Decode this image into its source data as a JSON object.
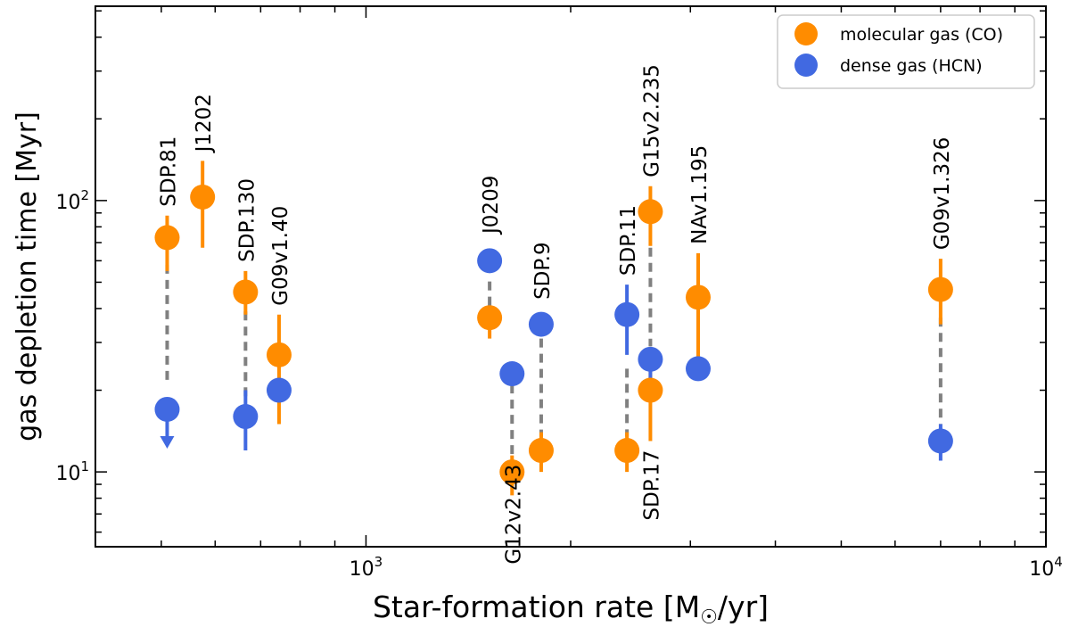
{
  "chart_data": {
    "type": "scatter",
    "xscale": "log",
    "yscale": "log",
    "xlim": [
      400,
      10000
    ],
    "ylim": [
      5.3,
      520
    ],
    "xlabel": "Star-formation rate [M",
    "xlabel_sub": "☉",
    "xlabel_end": "/yr]",
    "ylabel": "gas depletion time [Myr]",
    "x_ticks": [
      {
        "value": 1000,
        "base": "10",
        "exp": "3"
      },
      {
        "value": 10000,
        "base": "10",
        "exp": "4"
      }
    ],
    "y_ticks": [
      {
        "value": 10,
        "base": "10",
        "exp": "1"
      },
      {
        "value": 100,
        "base": "10",
        "exp": "2"
      }
    ],
    "legend": {
      "position": "top-right",
      "entries": [
        {
          "label": "molecular gas (CO)",
          "color": "#ff8c00"
        },
        {
          "label": "dense gas (HCN)",
          "color": "#4169e1"
        }
      ]
    },
    "colors": {
      "co": "#ff8c00",
      "hcn": "#4169e1",
      "link": "#808080"
    },
    "series": [
      {
        "name": "molecular gas (CO)",
        "key": "co",
        "points": [
          {
            "source": "SDP.81",
            "x": 510,
            "y": 73,
            "err": [
              55,
              88
            ]
          },
          {
            "source": "J1202",
            "x": 575,
            "y": 103,
            "err": [
              67,
              140
            ]
          },
          {
            "source": "SDP.130",
            "x": 665,
            "y": 46,
            "err": [
              38,
              55
            ]
          },
          {
            "source": "G09v1.40",
            "x": 745,
            "y": 27,
            "err": [
              15,
              38
            ]
          },
          {
            "source": "J0209",
            "x": 1520,
            "y": 37,
            "err": [
              31,
              41
            ]
          },
          {
            "source": "G12v2.43",
            "x": 1640,
            "y": 10,
            "err": [
              8.2,
              11.5
            ]
          },
          {
            "source": "SDP.9",
            "x": 1810,
            "y": 12,
            "err": [
              10,
              14
            ]
          },
          {
            "source": "SDP.11",
            "x": 2420,
            "y": 12,
            "err": [
              10,
              14
            ]
          },
          {
            "source": "G15v2.235",
            "x": 2620,
            "y": 91,
            "err": [
              68,
              113
            ]
          },
          {
            "source": "SDP.17",
            "x": 2620,
            "y": 20,
            "err": [
              13,
              27
            ]
          },
          {
            "source": "NAv1.195",
            "x": 3080,
            "y": 44,
            "err": [
              25,
              64
            ]
          },
          {
            "source": "G09v1.326",
            "x": 7000,
            "y": 47,
            "err": [
              35,
              61
            ]
          }
        ]
      },
      {
        "name": "dense gas (HCN)",
        "key": "hcn",
        "points": [
          {
            "source": "SDP.81",
            "x": 510,
            "y": 17,
            "upper_limit": true
          },
          {
            "source": "SDP.130",
            "x": 665,
            "y": 16,
            "err": [
              12,
              20
            ]
          },
          {
            "source": "G09v1.40",
            "x": 745,
            "y": 20
          },
          {
            "source": "J0209",
            "x": 1520,
            "y": 60
          },
          {
            "source": "G12v2.43",
            "x": 1640,
            "y": 23
          },
          {
            "source": "SDP.9",
            "x": 1810,
            "y": 35
          },
          {
            "source": "SDP.11",
            "x": 2420,
            "y": 38,
            "err": [
              27,
              49
            ]
          },
          {
            "source": "G15v2.235",
            "x": 2620,
            "y": 26,
            "upper_limit": true
          },
          {
            "source": "NAv1.195",
            "x": 3080,
            "y": 24
          },
          {
            "source": "G09v1.326",
            "x": 7000,
            "y": 13,
            "err": [
              11,
              15
            ]
          }
        ]
      }
    ],
    "links": [
      {
        "x": 510,
        "y1": 58,
        "y2": 21
      },
      {
        "x": 665,
        "y1": 39,
        "y2": 19
      },
      {
        "x": 1520,
        "y1": 41,
        "y2": 52
      },
      {
        "x": 1640,
        "y1": 21,
        "y2": 11.5
      },
      {
        "x": 1810,
        "y1": 31,
        "y2": 13.5
      },
      {
        "x": 2420,
        "y1": 24,
        "y2": 13.5
      },
      {
        "x": 2620,
        "y1": 67,
        "y2": 29
      },
      {
        "x": 7000,
        "y1": 37,
        "y2": 15
      }
    ],
    "annotations": [
      {
        "text": "SDP.81",
        "x": 510,
        "y": 88,
        "side": "above"
      },
      {
        "text": "J1202",
        "x": 575,
        "y": 140,
        "side": "above"
      },
      {
        "text": "SDP.130",
        "x": 665,
        "y": 55,
        "side": "above"
      },
      {
        "text": "G09v1.40",
        "x": 745,
        "y": 38,
        "side": "above"
      },
      {
        "text": "J0209",
        "x": 1520,
        "y": 70,
        "side": "above"
      },
      {
        "text": "SDP.9",
        "x": 1810,
        "y": 40,
        "side": "above"
      },
      {
        "text": "SDP.11",
        "x": 2420,
        "y": 49,
        "side": "above"
      },
      {
        "text": "G15v2.235",
        "x": 2620,
        "y": 113,
        "side": "above"
      },
      {
        "text": "NAv1.195",
        "x": 3080,
        "y": 64,
        "side": "above"
      },
      {
        "text": "G09v1.326",
        "x": 7000,
        "y": 61,
        "side": "above"
      },
      {
        "text": "G12v2.43",
        "x": 1640,
        "y": 11.5,
        "side": "below"
      },
      {
        "text": "SDP.17",
        "x": 2620,
        "y": 13,
        "side": "below"
      }
    ]
  }
}
